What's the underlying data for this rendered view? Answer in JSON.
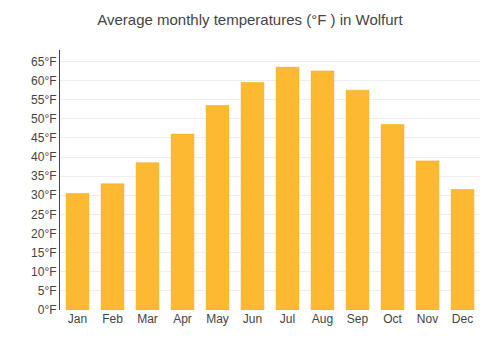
{
  "chart_data": {
    "type": "bar",
    "title": "Average monthly temperatures (°F ) in Wolfurt",
    "categories": [
      "Jan",
      "Feb",
      "Mar",
      "Apr",
      "May",
      "Jun",
      "Jul",
      "Aug",
      "Sep",
      "Oct",
      "Nov",
      "Dec"
    ],
    "values": [
      30.5,
      33.0,
      38.5,
      46.0,
      53.5,
      59.5,
      63.5,
      62.5,
      57.5,
      48.5,
      39.0,
      31.5
    ],
    "color": "#FDB931",
    "ylim": [
      0,
      68
    ],
    "yticks": [
      {
        "value": 0,
        "label": "0°F"
      },
      {
        "value": 5,
        "label": "5°F"
      },
      {
        "value": 10,
        "label": "10°F"
      },
      {
        "value": 15,
        "label": "15°F"
      },
      {
        "value": 20,
        "label": "20°F"
      },
      {
        "value": 25,
        "label": "25°F"
      },
      {
        "value": 30,
        "label": "30°F"
      },
      {
        "value": 35,
        "label": "35°F"
      },
      {
        "value": 40,
        "label": "40°F"
      },
      {
        "value": 45,
        "label": "45°F"
      },
      {
        "value": 50,
        "label": "50°F"
      },
      {
        "value": 55,
        "label": "55°F"
      },
      {
        "value": 60,
        "label": "60°F"
      },
      {
        "value": 65,
        "label": "65°F"
      }
    ],
    "grid": true
  }
}
